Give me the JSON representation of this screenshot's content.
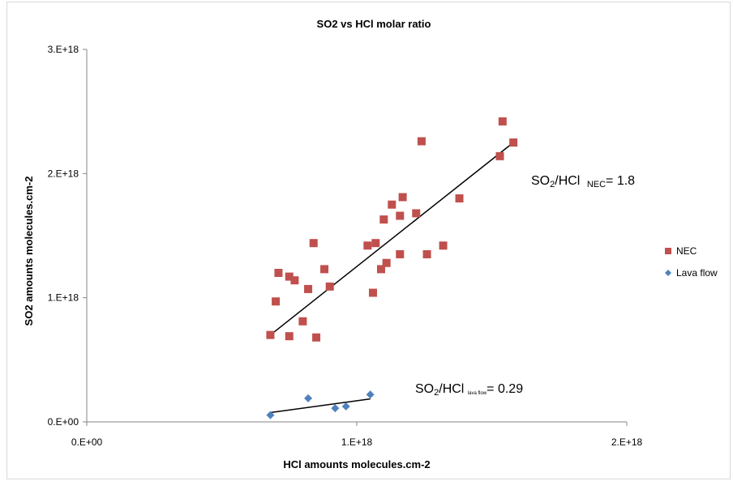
{
  "chart_data": {
    "type": "scatter",
    "title": "SO2 vs HCl molar ratio",
    "xlabel": "HCl amounts molecules.cm-2",
    "ylabel": "SO2 amounts molecules.cm-2",
    "xlim": [
      0,
      2e+18
    ],
    "ylim": [
      0,
      3e+18
    ],
    "x_ticks": [
      {
        "value": 0,
        "label": "0.E+00"
      },
      {
        "value": 1e+18,
        "label": "1.E+18"
      },
      {
        "value": 2e+18,
        "label": "2.E+18"
      }
    ],
    "y_ticks": [
      {
        "value": 0,
        "label": "0.E+00"
      },
      {
        "value": 1e+18,
        "label": "1.E+18"
      },
      {
        "value": 2e+18,
        "label": "2.E+18"
      },
      {
        "value": 3e+18,
        "label": "3.E+18"
      }
    ],
    "grid": false,
    "legend_position": "right",
    "series": [
      {
        "name": "NEC",
        "marker": "square",
        "color": "#c0504d",
        "points": [
          [
            6.8e+17,
            7e+17
          ],
          [
            7e+17,
            9.7e+17
          ],
          [
            7.1e+17,
            1.2e+18
          ],
          [
            7.5e+17,
            6.9e+17
          ],
          [
            7.5e+17,
            1.17e+18
          ],
          [
            7.7e+17,
            1.14e+18
          ],
          [
            8e+17,
            8.1e+17
          ],
          [
            8.2e+17,
            1.07e+18
          ],
          [
            8.4e+17,
            1.44e+18
          ],
          [
            8.5e+17,
            6.8e+17
          ],
          [
            8.8e+17,
            1.23e+18
          ],
          [
            9e+17,
            1.09e+18
          ],
          [
            1.04e+18,
            1.42e+18
          ],
          [
            1.06e+18,
            1.04e+18
          ],
          [
            1.07e+18,
            1.44e+18
          ],
          [
            1.09e+18,
            1.23e+18
          ],
          [
            1.1e+18,
            1.63e+18
          ],
          [
            1.11e+18,
            1.28e+18
          ],
          [
            1.13e+18,
            1.75e+18
          ],
          [
            1.16e+18,
            1.35e+18
          ],
          [
            1.16e+18,
            1.66e+18
          ],
          [
            1.17e+18,
            1.81e+18
          ],
          [
            1.22e+18,
            1.68e+18
          ],
          [
            1.24e+18,
            2.26e+18
          ],
          [
            1.26e+18,
            1.35e+18
          ],
          [
            1.32e+18,
            1.42e+18
          ],
          [
            1.38e+18,
            1.8e+18
          ],
          [
            1.53e+18,
            2.14e+18
          ],
          [
            1.54e+18,
            2.42e+18
          ],
          [
            1.58e+18,
            2.25e+18
          ]
        ]
      },
      {
        "name": "Lava flow",
        "marker": "diamond",
        "color": "#4f81bd",
        "points": [
          [
            6.8e+17,
            5.5e+16
          ],
          [
            8.2e+17,
            1.9e+17
          ],
          [
            9.2e+17,
            1.1e+17
          ],
          [
            9.6e+17,
            1.25e+17
          ],
          [
            1.05e+18,
            2.2e+17
          ]
        ]
      }
    ],
    "trendlines": [
      {
        "series": "NEC",
        "from": [
          6.8e+17,
          7e+17
        ],
        "to": [
          1.58e+18,
          2.25e+18
        ],
        "color": "#000000"
      },
      {
        "series": "Lava flow",
        "from": [
          6.8e+17,
          7.5e+16
        ],
        "to": [
          1.05e+18,
          1.85e+17
        ],
        "color": "#000000"
      }
    ],
    "annotations": [
      {
        "main": "SO",
        "sub2": "2",
        "mid": "/HCl ",
        "label": "NEC",
        "tail": "= 1.8"
      },
      {
        "main": "SO",
        "sub2": "2",
        "mid": "/HCl ",
        "label": "lava flow",
        "tail": "= 0.29"
      }
    ]
  }
}
